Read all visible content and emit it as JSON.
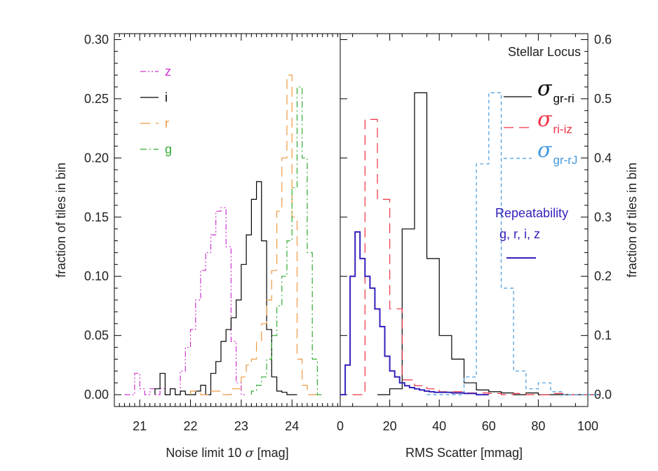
{
  "chart_data": [
    {
      "type": "histogram",
      "xlabel_prefix": "Noise limit 10 ",
      "xlabel_symbol": "σ",
      "xlabel_suffix": " [mag]",
      "ylabel": "fraction of tiles in bin",
      "xlim": [
        20.5,
        24.95
      ],
      "ylim": [
        -0.01,
        0.305
      ],
      "x_ticks": [
        {
          "value": 21,
          "label": "21"
        },
        {
          "value": 22,
          "label": "22"
        },
        {
          "value": 23,
          "label": "23"
        },
        {
          "value": 24,
          "label": "24"
        }
      ],
      "y_ticks": [
        {
          "value": 0.0,
          "label": "0.00"
        },
        {
          "value": 0.05,
          "label": "0.05"
        },
        {
          "value": 0.1,
          "label": "0.10"
        },
        {
          "value": 0.15,
          "label": "0.15"
        },
        {
          "value": 0.2,
          "label": "0.20"
        },
        {
          "value": 0.25,
          "label": "0.25"
        },
        {
          "value": 0.3,
          "label": "0.30"
        }
      ],
      "legend_position": "top-left",
      "series": [
        {
          "name": "z",
          "color": "#cc33cc",
          "dash": "dash-dot-dot",
          "x": [
            20.7,
            20.8,
            20.9,
            21.0,
            21.1,
            21.2,
            21.3,
            21.4,
            21.5,
            21.6,
            21.7,
            21.8,
            21.9,
            22.0,
            22.1,
            22.2,
            22.3,
            22.4,
            22.5,
            22.6,
            22.7,
            22.8,
            22.9,
            23.0
          ],
          "values": [
            0.0,
            0.0,
            0.018,
            0.005,
            0.0,
            0.005,
            0.0,
            0.005,
            0.0,
            0.005,
            0.0,
            0.02,
            0.04,
            0.055,
            0.08,
            0.105,
            0.12,
            0.135,
            0.155,
            0.158,
            0.125,
            0.045,
            0.01,
            0.0
          ]
        },
        {
          "name": "i",
          "color": "#000000",
          "dash": "solid",
          "x": [
            21.3,
            21.4,
            21.5,
            21.6,
            21.7,
            21.8,
            21.9,
            22.0,
            22.1,
            22.2,
            22.3,
            22.4,
            22.5,
            22.6,
            22.7,
            22.8,
            22.9,
            23.0,
            23.1,
            23.2,
            23.3,
            23.4,
            23.5,
            23.6,
            23.7,
            23.8,
            23.9,
            24.0
          ],
          "values": [
            0.005,
            0.018,
            0.0,
            0.005,
            0.0,
            0.003,
            0.0,
            0.0,
            0.003,
            0.008,
            0.0,
            0.018,
            0.028,
            0.045,
            0.055,
            0.065,
            0.08,
            0.11,
            0.135,
            0.165,
            0.18,
            0.13,
            0.055,
            0.015,
            0.003,
            0.002,
            0.0,
            0.0
          ]
        },
        {
          "name": "r",
          "color": "#ee9944",
          "dash": "long-dash",
          "x": [
            22.0,
            22.2,
            22.4,
            22.6,
            22.8,
            23.0,
            23.1,
            23.2,
            23.3,
            23.4,
            23.5,
            23.6,
            23.7,
            23.8,
            23.9,
            24.0,
            24.1,
            24.2,
            24.3,
            24.4,
            24.5
          ],
          "values": [
            0.003,
            0.0,
            0.003,
            0.0,
            0.005,
            0.015,
            0.025,
            0.03,
            0.045,
            0.06,
            0.08,
            0.105,
            0.155,
            0.2,
            0.27,
            0.15,
            0.03,
            0.008,
            0.0,
            0.0,
            0.0
          ]
        },
        {
          "name": "g",
          "color": "#33aa33",
          "dash": "dash-dot",
          "x": [
            23.2,
            23.3,
            23.4,
            23.5,
            23.6,
            23.7,
            23.8,
            23.9,
            24.0,
            24.1,
            24.2,
            24.3,
            24.4,
            24.5
          ],
          "values": [
            0.003,
            0.008,
            0.015,
            0.03,
            0.05,
            0.075,
            0.1,
            0.13,
            0.175,
            0.26,
            0.2,
            0.12,
            0.03,
            0.0
          ]
        }
      ]
    },
    {
      "type": "histogram",
      "title": "Stellar Locus",
      "xlabel": "RMS Scatter [mmag]",
      "ylabel": "fraction of tiles in bin",
      "xlim": [
        0,
        100
      ],
      "ylim": [
        -0.02,
        0.61
      ],
      "x_ticks": [
        {
          "value": 0,
          "label": "0"
        },
        {
          "value": 20,
          "label": "20"
        },
        {
          "value": 40,
          "label": "40"
        },
        {
          "value": 60,
          "label": "60"
        },
        {
          "value": 80,
          "label": "80"
        },
        {
          "value": 100,
          "label": "100"
        }
      ],
      "y_ticks": [
        {
          "value": 0.0,
          "label": "0.0"
        },
        {
          "value": 0.1,
          "label": "0.1"
        },
        {
          "value": 0.2,
          "label": "0.2"
        },
        {
          "value": 0.3,
          "label": "0.3"
        },
        {
          "value": 0.4,
          "label": "0.4"
        },
        {
          "value": 0.5,
          "label": "0.5"
        },
        {
          "value": 0.6,
          "label": "0.6"
        }
      ],
      "legend_position": "top-right",
      "series": [
        {
          "symbol": "σ",
          "subscript": "gr-ri",
          "color": "#000000",
          "dash": "solid",
          "x": [
            15,
            20,
            25,
            30,
            35,
            40,
            45,
            50,
            55,
            60,
            65,
            70,
            75,
            80,
            85,
            90,
            95,
            100
          ],
          "values": [
            0.0,
            0.01,
            0.28,
            0.51,
            0.23,
            0.1,
            0.06,
            0.02,
            0.008,
            0.005,
            0.003,
            0.0,
            0.003,
            0.0,
            0.0,
            0.0,
            0.0,
            0.0
          ]
        },
        {
          "symbol": "σ",
          "subscript": "ri-iz",
          "color": "#ee3344",
          "dash": "long-dash",
          "x": [
            5,
            10,
            15,
            20,
            25,
            30,
            35,
            40,
            45,
            50,
            55,
            60,
            65,
            70,
            75,
            80,
            85,
            90,
            95,
            100
          ],
          "values": [
            0.0,
            0.465,
            0.33,
            0.145,
            0.025,
            0.015,
            0.01,
            0.005,
            0.005,
            0.003,
            0.003,
            0.002,
            0.0,
            0.002,
            0.0,
            0.0,
            0.002,
            0.0,
            0.0,
            0.0
          ]
        },
        {
          "symbol": "σ",
          "subscript": "gr-rJ",
          "color": "#4499dd",
          "dash": "short-dash",
          "x": [
            35,
            40,
            45,
            50,
            55,
            60,
            65,
            70,
            75,
            80,
            85,
            90,
            95,
            100
          ],
          "values": [
            0.0,
            0.0,
            0.0,
            0.03,
            0.39,
            0.51,
            0.18,
            0.04,
            0.01,
            0.02,
            0.005,
            0.0,
            0.0,
            0.0
          ]
        },
        {
          "name": "Repeatability",
          "name_sub": "g, r, i, z",
          "color": "#3322bb",
          "dash": "solid",
          "width": 2,
          "x": [
            0,
            2,
            4,
            6,
            8,
            10,
            12,
            14,
            16,
            18,
            20,
            22,
            24,
            26,
            28,
            30,
            32,
            34,
            36,
            38,
            40,
            45,
            50,
            55
          ],
          "values": [
            0.0,
            0.05,
            0.2,
            0.275,
            0.23,
            0.2,
            0.18,
            0.145,
            0.115,
            0.065,
            0.04,
            0.03,
            0.02,
            0.015,
            0.012,
            0.01,
            0.008,
            0.006,
            0.005,
            0.004,
            0.004,
            0.003,
            0.002,
            0.0
          ]
        }
      ]
    }
  ]
}
